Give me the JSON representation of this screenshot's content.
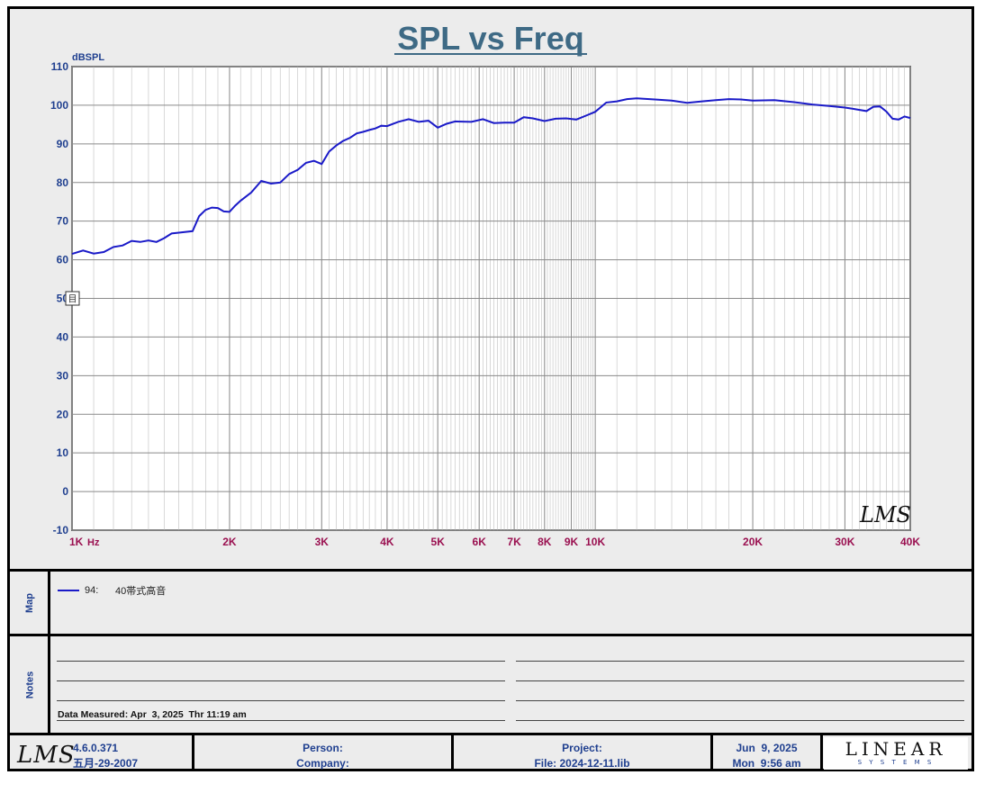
{
  "chart_data": {
    "type": "line",
    "title": "SPL vs Freq",
    "ylabel": "dBSPL",
    "xlabel": "Hz",
    "x_scale": "log",
    "xlim": [
      1000,
      40000
    ],
    "ylim": [
      -10,
      110
    ],
    "y_ticks": [
      -10,
      0,
      10,
      20,
      30,
      40,
      50,
      60,
      70,
      80,
      90,
      100,
      110
    ],
    "x_ticks": [
      {
        "value": 1000,
        "label": "1K"
      },
      {
        "value": 2000,
        "label": "2K"
      },
      {
        "value": 3000,
        "label": "3K"
      },
      {
        "value": 4000,
        "label": "4K"
      },
      {
        "value": 5000,
        "label": "5K"
      },
      {
        "value": 6000,
        "label": "6K"
      },
      {
        "value": 7000,
        "label": "7K"
      },
      {
        "value": 8000,
        "label": "8K"
      },
      {
        "value": 9000,
        "label": "9K"
      },
      {
        "value": 10000,
        "label": "10K"
      },
      {
        "value": 20000,
        "label": "20K"
      },
      {
        "value": 30000,
        "label": "30K"
      },
      {
        "value": 40000,
        "label": "40K"
      }
    ],
    "grid": true,
    "series": [
      {
        "name": "40帯式高音",
        "color": "#1a1ac8",
        "points": [
          [
            1000,
            61.5
          ],
          [
            1050,
            62.4
          ],
          [
            1100,
            61.6
          ],
          [
            1150,
            62.0
          ],
          [
            1200,
            63.3
          ],
          [
            1250,
            63.7
          ],
          [
            1300,
            64.9
          ],
          [
            1350,
            64.6
          ],
          [
            1400,
            65.0
          ],
          [
            1450,
            64.6
          ],
          [
            1500,
            65.6
          ],
          [
            1550,
            66.8
          ],
          [
            1600,
            67.0
          ],
          [
            1700,
            67.4
          ],
          [
            1750,
            71.3
          ],
          [
            1800,
            72.9
          ],
          [
            1850,
            73.5
          ],
          [
            1900,
            73.4
          ],
          [
            1950,
            72.5
          ],
          [
            2000,
            72.4
          ],
          [
            2050,
            74.0
          ],
          [
            2100,
            75.3
          ],
          [
            2200,
            77.4
          ],
          [
            2300,
            80.4
          ],
          [
            2400,
            79.7
          ],
          [
            2500,
            80.0
          ],
          [
            2600,
            82.2
          ],
          [
            2700,
            83.3
          ],
          [
            2800,
            85.1
          ],
          [
            2900,
            85.6
          ],
          [
            3000,
            84.8
          ],
          [
            3100,
            88.0
          ],
          [
            3200,
            89.6
          ],
          [
            3300,
            90.8
          ],
          [
            3400,
            91.6
          ],
          [
            3500,
            92.7
          ],
          [
            3600,
            93.1
          ],
          [
            3700,
            93.6
          ],
          [
            3800,
            94.0
          ],
          [
            3900,
            94.7
          ],
          [
            4000,
            94.6
          ],
          [
            4200,
            95.7
          ],
          [
            4400,
            96.4
          ],
          [
            4600,
            95.7
          ],
          [
            4800,
            96.0
          ],
          [
            5000,
            94.2
          ],
          [
            5200,
            95.2
          ],
          [
            5400,
            95.8
          ],
          [
            5800,
            95.7
          ],
          [
            6100,
            96.4
          ],
          [
            6400,
            95.4
          ],
          [
            6700,
            95.5
          ],
          [
            7000,
            95.5
          ],
          [
            7300,
            96.9
          ],
          [
            7600,
            96.6
          ],
          [
            8000,
            95.9
          ],
          [
            8400,
            96.5
          ],
          [
            8800,
            96.6
          ],
          [
            9200,
            96.3
          ],
          [
            9600,
            97.3
          ],
          [
            10000,
            98.3
          ],
          [
            10500,
            100.7
          ],
          [
            11000,
            101.0
          ],
          [
            11500,
            101.6
          ],
          [
            12000,
            101.8
          ],
          [
            13000,
            101.5
          ],
          [
            14000,
            101.2
          ],
          [
            15000,
            100.6
          ],
          [
            16000,
            101.0
          ],
          [
            17000,
            101.3
          ],
          [
            18000,
            101.6
          ],
          [
            19000,
            101.5
          ],
          [
            20000,
            101.2
          ],
          [
            22000,
            101.3
          ],
          [
            24000,
            100.8
          ],
          [
            26000,
            100.2
          ],
          [
            28000,
            99.8
          ],
          [
            30000,
            99.4
          ],
          [
            31000,
            99.1
          ],
          [
            32000,
            98.8
          ],
          [
            33000,
            98.5
          ],
          [
            34000,
            99.6
          ],
          [
            35000,
            99.7
          ],
          [
            36000,
            98.4
          ],
          [
            37000,
            96.5
          ],
          [
            38000,
            96.3
          ],
          [
            39000,
            97.1
          ],
          [
            40000,
            96.7
          ]
        ]
      }
    ],
    "watermark": "LMS"
  },
  "map": {
    "label": "Map",
    "entries": [
      {
        "id": "94:",
        "name": "40帯式高音"
      }
    ]
  },
  "notes": {
    "label": "Notes",
    "data_measured": "Data Measured: Apr  3, 2025  Thr 11:19 am"
  },
  "footer": {
    "app_version": "4.6.0.371",
    "app_date": "五月-29-2007",
    "person_label": "Person:",
    "company_label": "Company:",
    "project_label": "Project:",
    "file_label": "File: 2024-12-11.lib",
    "date": "Jun  9, 2025",
    "time": "Mon  9:56 am",
    "brand_top": "LINEAR",
    "brand_bottom": "S Y S T E M S",
    "lms_logo": "LMS"
  },
  "cursor_marker": "目",
  "colors": {
    "grid": "#9a9a9a",
    "axis_label_x": "#9a1050",
    "axis_label_y": "#1f3f8f",
    "trace": "#1a1ac8",
    "title": "#3e6a85"
  }
}
